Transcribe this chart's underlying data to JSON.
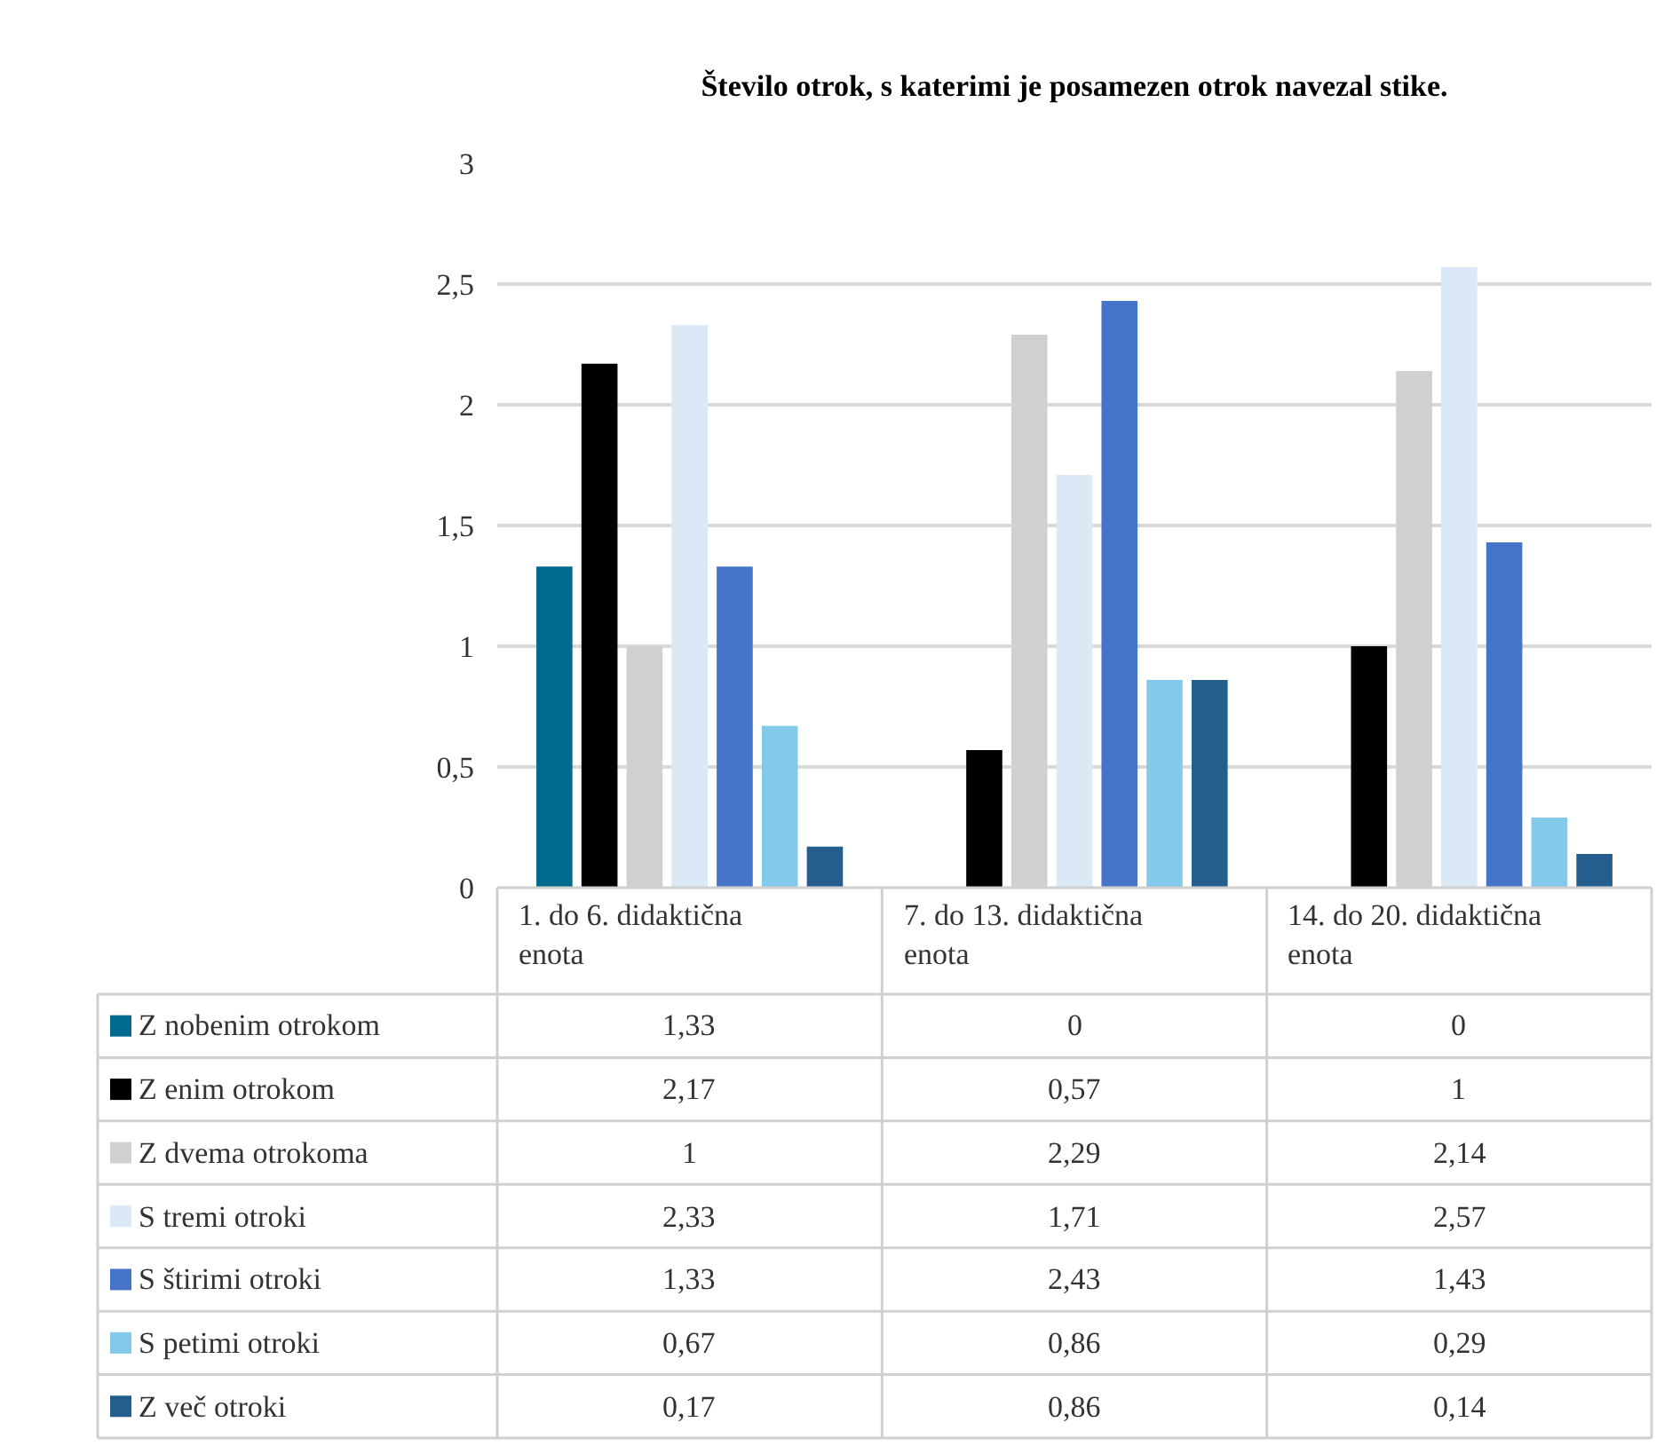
{
  "chart_data": {
    "type": "bar",
    "title": "Število otrok, s katerimi je posamezen otrok navezal stike.",
    "categories": [
      "1. do 6. didaktična enota",
      "7. do 13. didaktična enota",
      "14. do 20. didaktična enota"
    ],
    "series": [
      {
        "name": "Z nobenim otrokom",
        "color": "#006a8e",
        "values": [
          1.33,
          0,
          0
        ],
        "value_labels": [
          "1,33",
          "0",
          "0"
        ]
      },
      {
        "name": "Z enim otrokom",
        "color": "#000000",
        "values": [
          2.17,
          0.57,
          1
        ],
        "value_labels": [
          "2,17",
          "0,57",
          "1"
        ]
      },
      {
        "name": "Z dvema otrokoma",
        "color": "#d0d0d0",
        "values": [
          1,
          2.29,
          2.14
        ],
        "value_labels": [
          "1",
          "2,29",
          "2,14"
        ]
      },
      {
        "name": "S tremi otroki",
        "color": "#dbe8f6",
        "values": [
          2.33,
          1.71,
          2.57
        ],
        "value_labels": [
          "2,33",
          "1,71",
          "2,57"
        ]
      },
      {
        "name": "S štirimi otroki",
        "color": "#4674c8",
        "values": [
          1.33,
          2.43,
          1.43
        ],
        "value_labels": [
          "1,33",
          "2,43",
          "1,43"
        ]
      },
      {
        "name": "S petimi otroki",
        "color": "#82c9ea",
        "values": [
          0.67,
          0.86,
          0.29
        ],
        "value_labels": [
          "0,67",
          "0,86",
          "0,29"
        ]
      },
      {
        "name": "Z več otroki",
        "color": "#245e8f",
        "values": [
          0.17,
          0.86,
          0.14
        ],
        "value_labels": [
          "0,17",
          "0,86",
          "0,14"
        ]
      }
    ],
    "ylim": [
      0,
      3
    ],
    "yticks": [
      0,
      {
        "value": 0.5,
        "label": "0,5"
      },
      1,
      {
        "value": 1.5,
        "label": "1,5"
      },
      2,
      {
        "value": 2.5,
        "label": "2,5"
      },
      3
    ],
    "grid": "y",
    "legend": "bottom"
  }
}
